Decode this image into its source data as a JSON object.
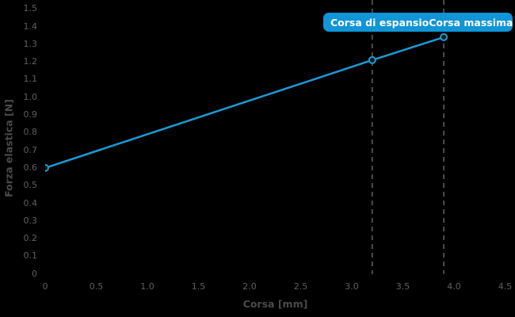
{
  "colors": {
    "background": "#000000",
    "accent_blue": "#1b9ad6",
    "tooltip_blue": "#1095d6",
    "dashed_line_gray": "#4d4d4d",
    "tick_text_gray": "#5f5f5f",
    "axis_title_gray": "#4a4a4a",
    "tooltip_text": "#ffffff",
    "marker_fill": "#1a1a1a"
  },
  "chart_data": {
    "type": "line",
    "title": "",
    "xlabel": "Corsa [mm]",
    "ylabel": "Forza elastica [N]",
    "x": [
      0,
      3.2,
      3.9
    ],
    "y": [
      0.6,
      1.21,
      1.34
    ],
    "xlim": [
      0,
      4.5
    ],
    "ylim": [
      0,
      1.5
    ],
    "x_ticks": [
      "0",
      "0.5",
      "1.0",
      "1.5",
      "2.0",
      "2.5",
      "3.0",
      "3.5",
      "4.0",
      "4.5"
    ],
    "x_tick_values": [
      0,
      0.5,
      1.0,
      1.5,
      2.0,
      2.5,
      3.0,
      3.5,
      4.0,
      4.5
    ],
    "y_ticks": [
      "0",
      "0.1",
      "0.2",
      "0.3",
      "0.4",
      "0.5",
      "0.6",
      "0.7",
      "0.8",
      "0.9",
      "1.0",
      "1.1",
      "1.2",
      "1.3",
      "1.4",
      "1.5"
    ],
    "y_tick_values": [
      0,
      0.1,
      0.2,
      0.3,
      0.4,
      0.5,
      0.6,
      0.7,
      0.8,
      0.9,
      1.0,
      1.1,
      1.2,
      1.3,
      1.4,
      1.5
    ],
    "grid": false,
    "legend": "none",
    "annotations": [
      {
        "type": "vline",
        "x": 3.2,
        "label": "Corsa di espansio"
      },
      {
        "type": "vline",
        "x": 3.9,
        "label": "Corsa massima"
      }
    ]
  }
}
